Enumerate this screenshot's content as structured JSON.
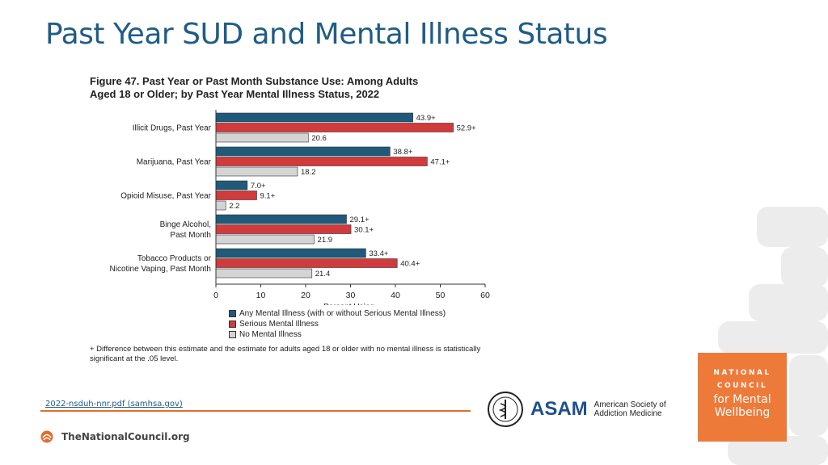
{
  "page": {
    "title": "Past Year SUD and Mental Illness Status",
    "source_link": "2022-nsduh-nnr.pdf (samhsa.gov)",
    "footer_org": "TheNationalCouncil.org",
    "asam": {
      "word": "ASAM",
      "line1": "American Society of",
      "line2": "Addiction Medicine"
    },
    "nc_logo": {
      "line1": "NATIONAL",
      "line2": "COUNCIL",
      "line3": "for Mental",
      "line4": "Wellbeing"
    }
  },
  "colors": {
    "any": "#1f5a7a",
    "serious": "#d23a3c",
    "none": "#d4d4d4",
    "title": "#1f5c86",
    "accent": "#e26d2c"
  },
  "chart_data": {
    "type": "bar",
    "orientation": "horizontal",
    "title": "Figure 47. Past Year or Past Month Substance Use: Among Adults Aged 18 or Older; by Past Year Mental Illness Status, 2022",
    "title_line1": "Figure 47. Past Year or Past Month Substance Use: Among Adults",
    "title_line2": "Aged 18 or Older; by Past Year Mental Illness Status, 2022",
    "categories": [
      [
        "Illicit Drugs, Past Year"
      ],
      [
        "Marijuana, Past Year"
      ],
      [
        "Opioid Misuse, Past Year"
      ],
      [
        "Binge Alcohol,",
        "Past Month"
      ],
      [
        "Tobacco Products or",
        "Nicotine Vaping, Past Month"
      ]
    ],
    "series": [
      {
        "name": "Any Mental Illness (with or without Serious Mental Illness)",
        "values": [
          43.9,
          38.8,
          7.0,
          29.1,
          33.4
        ],
        "labels": [
          "43.9+",
          "38.8+",
          "7.0+",
          "29.1+",
          "33.4+"
        ]
      },
      {
        "name": "Serious Mental Illness",
        "values": [
          52.9,
          47.1,
          9.1,
          30.1,
          40.4
        ],
        "labels": [
          "52.9+",
          "47.1+",
          "9.1+",
          "30.1+",
          "40.4+"
        ]
      },
      {
        "name": "No Mental Illness",
        "values": [
          20.6,
          18.2,
          2.2,
          21.9,
          21.4
        ],
        "labels": [
          "20.6",
          "18.2",
          "2.2",
          "21.9",
          "21.4"
        ]
      }
    ],
    "xlabel": "Percent Using",
    "xlim": [
      0,
      60
    ],
    "xticks": [
      0,
      10,
      20,
      30,
      40,
      50,
      60
    ],
    "legend_position": "bottom",
    "footnote": "+ Difference between this estimate and the estimate for adults aged 18 or older with no mental illness is statistically significant at the .05 level."
  }
}
